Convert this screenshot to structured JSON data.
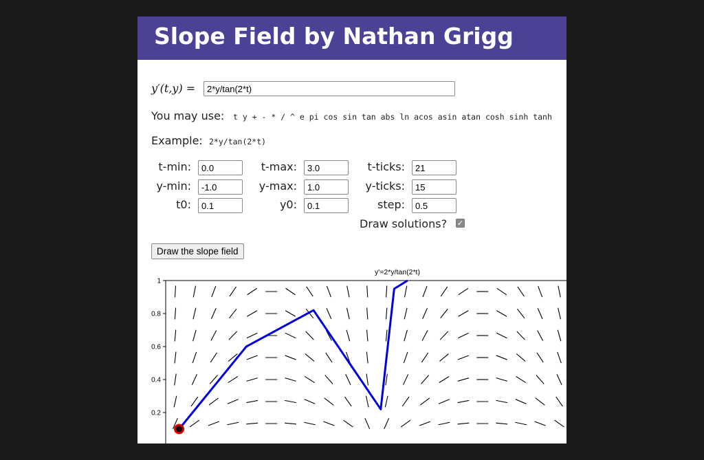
{
  "header": {
    "title": "Slope Field by Nathan Grigg"
  },
  "equation": {
    "label": "y′(t,y) =",
    "value": "2*y/tan(2*t)"
  },
  "allowed": {
    "label": "You may use:",
    "tokens": "t y + - * / ^ e pi cos sin tan abs ln acos asin atan cosh sinh tanh"
  },
  "example": {
    "label": "Example:",
    "value": "2*y/tan(2*t)"
  },
  "params": {
    "tmin": {
      "label": "t-min:",
      "value": "0.0"
    },
    "tmax": {
      "label": "t-max:",
      "value": "3.0"
    },
    "tticks": {
      "label": "t-ticks:",
      "value": "21"
    },
    "ymin": {
      "label": "y-min:",
      "value": "-1.0"
    },
    "ymax": {
      "label": "y-max:",
      "value": "1.0"
    },
    "yticks": {
      "label": "y-ticks:",
      "value": "15"
    },
    "t0": {
      "label": "t0:",
      "value": "0.1"
    },
    "y0": {
      "label": "y0:",
      "value": "0.1"
    },
    "step": {
      "label": "step:",
      "value": "0.5"
    }
  },
  "draw_solutions": {
    "label": "Draw solutions?",
    "checked": true
  },
  "draw_button": {
    "label": "Draw the slope field"
  },
  "chart_data": {
    "type": "line",
    "title": "y'=2*y/tan(2*t)",
    "xlabel": "",
    "ylabel": "",
    "xlim": [
      0.0,
      3.0
    ],
    "ylim_visible": [
      0.0,
      1.0
    ],
    "y_tick_labels": [
      "0.2",
      "0.4",
      "0.6",
      "0.8",
      "1"
    ],
    "y_ticks": [
      0.2,
      0.4,
      0.6,
      0.8,
      1.0
    ],
    "field_equation": "2*y/tan(2*t)",
    "t_ticks": 21,
    "y_ticks_count": 15,
    "series": [
      {
        "t": [
          0.1,
          0.6,
          1.1,
          1.6,
          1.7,
          1.8
        ],
        "y": [
          0.1,
          0.6,
          0.82,
          0.22,
          0.95,
          1.0
        ],
        "color": "#0000dd"
      }
    ],
    "initial_point": {
      "t": 0.1,
      "y": 0.1,
      "color": "#dd0000"
    },
    "grid": false
  }
}
